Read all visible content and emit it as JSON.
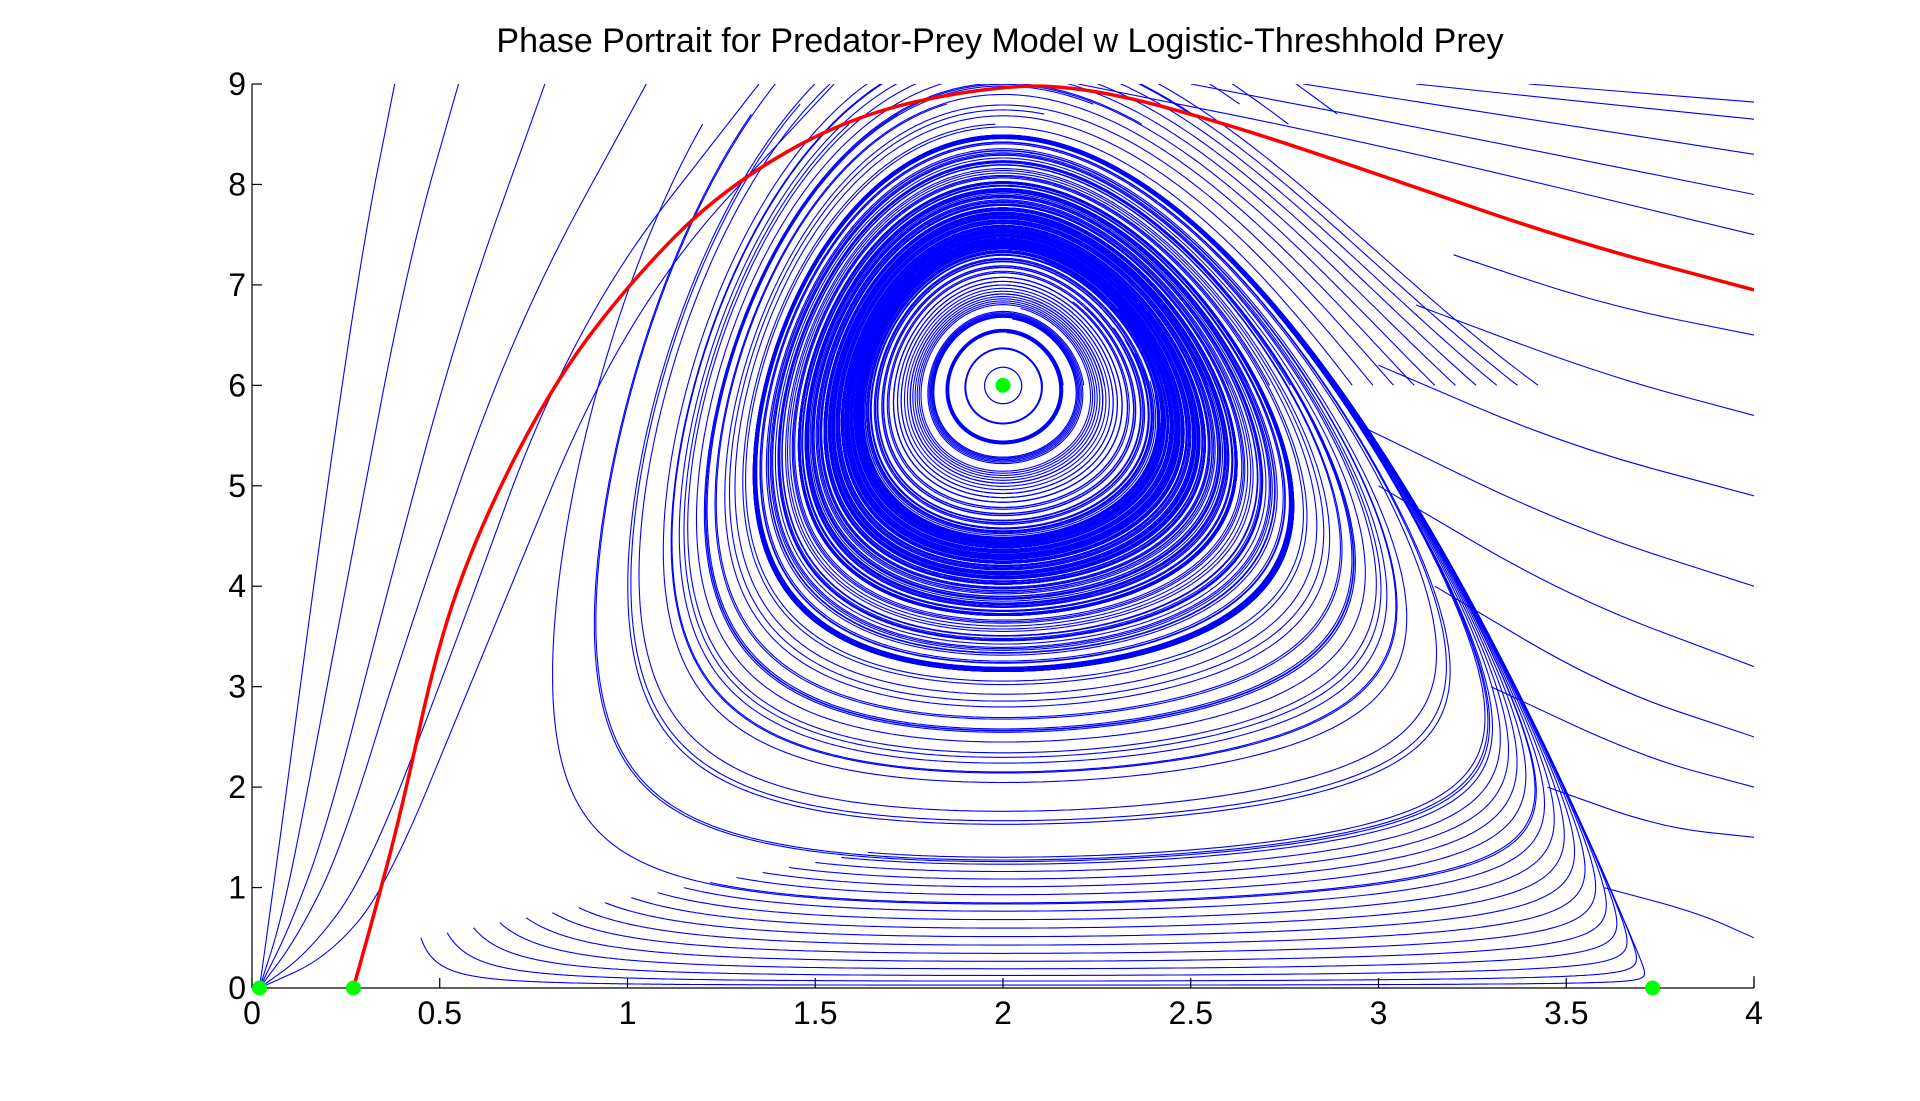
{
  "chart_data": {
    "type": "line",
    "title": "Phase Portrait for Predator-Prey Model w Logistic-Threshhold Prey",
    "xlabel": "",
    "ylabel": "",
    "xlim": [
      0,
      4
    ],
    "ylim": [
      0,
      9
    ],
    "x_ticks": [
      "0",
      "0.5",
      "1",
      "1.5",
      "2",
      "2.5",
      "3",
      "3.5",
      "4"
    ],
    "y_ticks": [
      "0",
      "1",
      "2",
      "3",
      "4",
      "5",
      "6",
      "7",
      "8",
      "9"
    ],
    "grid": false,
    "legend": "none",
    "trajectory_color": "#0000ff",
    "separatrix_color": "#ff0000",
    "equilibrium_color": "#00ff00",
    "model": {
      "prey_threshold": 0.27,
      "prey_capacity": 3.73,
      "coexistence_equilibrium": [
        2.0,
        6.0
      ]
    },
    "equilibria": [
      {
        "x": 0.02,
        "y": 0
      },
      {
        "x": 0.27,
        "y": 0
      },
      {
        "x": 3.73,
        "y": 0
      },
      {
        "x": 2.0,
        "y": 6.0
      }
    ],
    "separatrix": [
      {
        "x": 0.27,
        "y": 0
      },
      {
        "x": 0.33,
        "y": 0.8
      },
      {
        "x": 0.4,
        "y": 1.8
      },
      {
        "x": 0.5,
        "y": 3.5
      },
      {
        "x": 0.62,
        "y": 4.7
      },
      {
        "x": 0.8,
        "y": 6.0
      },
      {
        "x": 1.0,
        "y": 7.0
      },
      {
        "x": 1.25,
        "y": 7.95
      },
      {
        "x": 1.6,
        "y": 8.7
      },
      {
        "x": 2.0,
        "y": 9.0
      },
      {
        "x": 2.25,
        "y": 8.95
      },
      {
        "x": 2.6,
        "y": 8.6
      },
      {
        "x": 3.0,
        "y": 8.1
      },
      {
        "x": 3.5,
        "y": 7.45
      },
      {
        "x": 4.0,
        "y": 6.95
      }
    ],
    "escape_curves": [
      {
        "name": "",
        "points": [
          {
            "x": 0.02,
            "y": 0
          },
          {
            "x": 0.05,
            "y": 0.8
          },
          {
            "x": 0.1,
            "y": 2.2
          },
          {
            "x": 0.2,
            "y": 5.0
          },
          {
            "x": 0.3,
            "y": 7.5
          },
          {
            "x": 0.38,
            "y": 9.0
          }
        ]
      },
      {
        "name": "",
        "points": [
          {
            "x": 0.02,
            "y": 0
          },
          {
            "x": 0.08,
            "y": 0.7
          },
          {
            "x": 0.15,
            "y": 2.0
          },
          {
            "x": 0.28,
            "y": 4.6
          },
          {
            "x": 0.42,
            "y": 7.3
          },
          {
            "x": 0.55,
            "y": 9.0
          }
        ]
      },
      {
        "name": "",
        "points": [
          {
            "x": 0.02,
            "y": 0
          },
          {
            "x": 0.1,
            "y": 0.6
          },
          {
            "x": 0.2,
            "y": 1.6
          },
          {
            "x": 0.35,
            "y": 3.8
          },
          {
            "x": 0.55,
            "y": 6.6
          },
          {
            "x": 0.78,
            "y": 9.0
          }
        ]
      },
      {
        "name": "",
        "points": [
          {
            "x": 0.02,
            "y": 0
          },
          {
            "x": 0.12,
            "y": 0.5
          },
          {
            "x": 0.24,
            "y": 1.4
          },
          {
            "x": 0.42,
            "y": 3.6
          },
          {
            "x": 0.7,
            "y": 6.6
          },
          {
            "x": 1.05,
            "y": 9.0
          }
        ]
      },
      {
        "name": "",
        "points": [
          {
            "x": 0.02,
            "y": 0
          },
          {
            "x": 0.15,
            "y": 0.35
          },
          {
            "x": 0.3,
            "y": 1.1
          },
          {
            "x": 0.5,
            "y": 3.0
          },
          {
            "x": 0.85,
            "y": 6.6
          },
          {
            "x": 1.35,
            "y": 9.0
          }
        ]
      },
      {
        "name": "",
        "points": [
          {
            "x": 0.02,
            "y": 0
          },
          {
            "x": 0.2,
            "y": 0.3
          },
          {
            "x": 0.36,
            "y": 1.0
          },
          {
            "x": 0.6,
            "y": 3.2
          },
          {
            "x": 1.0,
            "y": 6.8
          },
          {
            "x": 1.55,
            "y": 9.0
          }
        ]
      },
      {
        "name": "",
        "points": [
          {
            "x": 2.2,
            "y": 9.0
          },
          {
            "x": 3.0,
            "y": 8.4
          },
          {
            "x": 4.0,
            "y": 7.5
          }
        ]
      },
      {
        "name": "",
        "points": [
          {
            "x": 2.5,
            "y": 9.0
          },
          {
            "x": 3.2,
            "y": 8.5
          },
          {
            "x": 4.0,
            "y": 7.9
          }
        ]
      },
      {
        "name": "",
        "points": [
          {
            "x": 2.8,
            "y": 9.0
          },
          {
            "x": 3.4,
            "y": 8.65
          },
          {
            "x": 4.0,
            "y": 8.3
          }
        ]
      },
      {
        "name": "",
        "points": [
          {
            "x": 3.1,
            "y": 9.0
          },
          {
            "x": 3.6,
            "y": 8.8
          },
          {
            "x": 4.0,
            "y": 8.65
          }
        ]
      },
      {
        "name": "",
        "points": [
          {
            "x": 3.4,
            "y": 9.0
          },
          {
            "x": 3.8,
            "y": 8.88
          },
          {
            "x": 4.0,
            "y": 8.82
          }
        ]
      },
      {
        "name": "",
        "points": [
          {
            "x": 3.6,
            "y": 1.0
          },
          {
            "x": 3.85,
            "y": 0.75
          },
          {
            "x": 4.0,
            "y": 0.5
          }
        ]
      },
      {
        "name": "",
        "points": [
          {
            "x": 3.45,
            "y": 2.0
          },
          {
            "x": 3.75,
            "y": 1.6
          },
          {
            "x": 4.0,
            "y": 1.5
          }
        ]
      },
      {
        "name": "",
        "points": [
          {
            "x": 3.3,
            "y": 3.0
          },
          {
            "x": 3.7,
            "y": 2.3
          },
          {
            "x": 4.0,
            "y": 2.0
          }
        ]
      },
      {
        "name": "",
        "points": [
          {
            "x": 3.15,
            "y": 4.0
          },
          {
            "x": 3.6,
            "y": 3.0
          },
          {
            "x": 4.0,
            "y": 2.5
          }
        ]
      },
      {
        "name": "",
        "points": [
          {
            "x": 3.0,
            "y": 5.0
          },
          {
            "x": 3.5,
            "y": 3.9
          },
          {
            "x": 4.0,
            "y": 3.2
          }
        ]
      },
      {
        "name": "",
        "points": [
          {
            "x": 2.95,
            "y": 5.6
          },
          {
            "x": 3.5,
            "y": 4.6
          },
          {
            "x": 4.0,
            "y": 4.0
          }
        ]
      },
      {
        "name": "",
        "points": [
          {
            "x": 3.0,
            "y": 6.2
          },
          {
            "x": 3.5,
            "y": 5.4
          },
          {
            "x": 4.0,
            "y": 4.9
          }
        ]
      },
      {
        "name": "",
        "points": [
          {
            "x": 3.1,
            "y": 6.8
          },
          {
            "x": 3.6,
            "y": 6.1
          },
          {
            "x": 4.0,
            "y": 5.7
          }
        ]
      },
      {
        "name": "",
        "points": [
          {
            "x": 3.2,
            "y": 7.3
          },
          {
            "x": 3.6,
            "y": 6.8
          },
          {
            "x": 4.0,
            "y": 6.5
          }
        ]
      }
    ]
  }
}
